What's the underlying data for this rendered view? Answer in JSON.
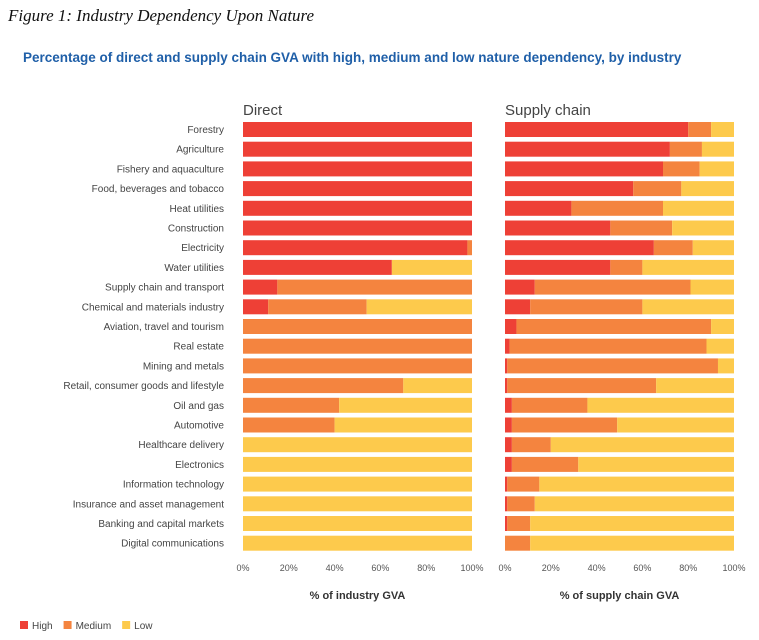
{
  "figure_caption": "Figure 1: Industry Dependency Upon Nature",
  "colors": {
    "high": "#ee4036",
    "medium": "#f4843f",
    "low": "#fdca4c"
  },
  "chart_data": {
    "type": "bar",
    "orientation": "horizontal-stacked",
    "title": "Percentage of direct and supply chain GVA with high, medium and low nature dependency, by industry",
    "categories": [
      "Forestry",
      "Agriculture",
      "Fishery and aquaculture",
      "Food, beverages and tobacco",
      "Heat utilities",
      "Construction",
      "Electricity",
      "Water utilities",
      "Supply chain and transport",
      "Chemical and materials industry",
      "Aviation, travel and tourism",
      "Real estate",
      "Mining and metals",
      "Retail, consumer goods and lifestyle",
      "Oil and gas",
      "Automotive",
      "Healthcare delivery",
      "Electronics",
      "Information technology",
      "Insurance and asset management",
      "Banking and capital markets",
      "Digital communications"
    ],
    "tick_labels": [
      "0%",
      "20%",
      "40%",
      "60%",
      "80%",
      "100%"
    ],
    "xlim": [
      0,
      100
    ],
    "legend": [
      "High",
      "Medium",
      "Low"
    ],
    "legend_position": "bottom-left",
    "panels": [
      {
        "title": "Direct",
        "xlabel": "% of industry GVA",
        "series": [
          {
            "name": "High",
            "values": [
              100,
              100,
              100,
              100,
              100,
              100,
              98,
              65,
              15,
              11,
              0,
              0,
              0,
              0,
              0,
              0,
              0,
              0,
              0,
              0,
              0,
              0
            ]
          },
          {
            "name": "Medium",
            "values": [
              0,
              0,
              0,
              0,
              0,
              0,
              2,
              0,
              85,
              43,
              100,
              100,
              100,
              70,
              42,
              40,
              0,
              0,
              0,
              0,
              0,
              0
            ]
          },
          {
            "name": "Low",
            "values": [
              0,
              0,
              0,
              0,
              0,
              0,
              0,
              35,
              0,
              46,
              0,
              0,
              0,
              30,
              58,
              60,
              100,
              100,
              100,
              100,
              100,
              100
            ]
          }
        ]
      },
      {
        "title": "Supply chain",
        "xlabel": "% of supply chain GVA",
        "series": [
          {
            "name": "High",
            "values": [
              80,
              72,
              69,
              56,
              29,
              46,
              65,
              46,
              13,
              11,
              5,
              2,
              1,
              1,
              3,
              3,
              3,
              3,
              1,
              1,
              1,
              0
            ]
          },
          {
            "name": "Medium",
            "values": [
              10,
              14,
              16,
              21,
              40,
              27,
              17,
              14,
              68,
              49,
              85,
              86,
              92,
              65,
              33,
              46,
              17,
              29,
              14,
              12,
              10,
              11
            ]
          },
          {
            "name": "Low",
            "values": [
              10,
              14,
              15,
              23,
              31,
              27,
              18,
              40,
              19,
              40,
              10,
              12,
              7,
              34,
              64,
              51,
              80,
              68,
              85,
              87,
              89,
              89
            ]
          }
        ]
      }
    ]
  }
}
